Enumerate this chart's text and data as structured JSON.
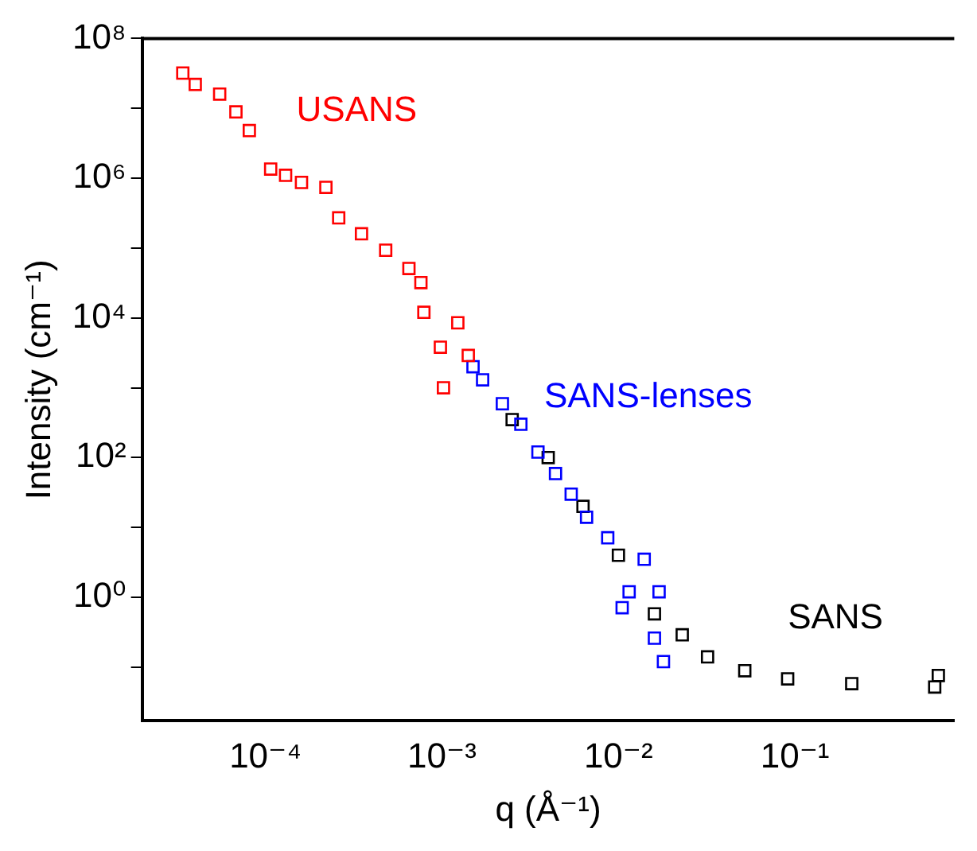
{
  "chart_data": {
    "type": "scatter",
    "xlabel": "q (Å⁻¹)",
    "ylabel": "Intensity (cm⁻¹)",
    "log": "xy",
    "marker": "square",
    "grid": false,
    "legend": false,
    "xlim": [
      2e-05,
      0.8
    ],
    "ylim": [
      0.017,
      100000000
    ],
    "xticks": [
      {
        "value": 0.0001,
        "label": "10⁻⁴"
      },
      {
        "value": 0.001,
        "label": "10⁻³"
      },
      {
        "value": 0.01,
        "label": "10⁻²"
      },
      {
        "value": 0.1,
        "label": "10⁻¹"
      }
    ],
    "yticks": [
      {
        "value": 0.1,
        "label": null
      },
      {
        "value": 1,
        "label": "10⁰"
      },
      {
        "value": 10,
        "label": null
      },
      {
        "value": 100,
        "label": "10²"
      },
      {
        "value": 1000,
        "label": null
      },
      {
        "value": 10000,
        "label": "10⁴"
      },
      {
        "value": 100000,
        "label": null
      },
      {
        "value": 1000000,
        "label": "10⁶"
      },
      {
        "value": 10000000,
        "label": null
      },
      {
        "value": 100000000,
        "label": "10⁸"
      }
    ],
    "series": [
      {
        "name": "USANS",
        "color": "#ff0000",
        "x": [
          3.4e-05,
          4e-05,
          5.5e-05,
          6.8e-05,
          8.1e-05,
          0.000107,
          0.00013,
          0.00016,
          0.00022,
          0.00026,
          0.00035,
          0.00048,
          0.00065,
          0.00076,
          0.00079,
          0.00098,
          0.00102,
          0.00123,
          0.00141
        ],
        "values": [
          32000000,
          22000000,
          16000000,
          8900000,
          4800000,
          1350000,
          1100000,
          870000,
          740000,
          270000,
          160000,
          93000,
          51000,
          32000,
          12000,
          3800,
          1000,
          8500,
          2900
        ]
      },
      {
        "name": "SANS-lenses",
        "color": "#0000ff",
        "x": [
          0.0015,
          0.0017,
          0.0022,
          0.0028,
          0.0035,
          0.0044,
          0.0054,
          0.0066,
          0.0087,
          0.0115,
          0.014,
          0.0105,
          0.017,
          0.016,
          0.018
        ],
        "values": [
          2000,
          1300,
          590,
          300,
          120,
          59,
          30,
          14,
          7.1,
          1.2,
          3.5,
          0.71,
          1.2,
          0.26,
          0.12
        ]
      },
      {
        "name": "SANS",
        "color": "#000000",
        "x": [
          0.0025,
          0.004,
          0.0063,
          0.01,
          0.016,
          0.023,
          0.032,
          0.052,
          0.091,
          0.21,
          0.62,
          0.65
        ],
        "values": [
          350,
          100,
          20,
          4,
          0.58,
          0.29,
          0.14,
          0.089,
          0.068,
          0.058,
          0.052,
          0.076
        ]
      }
    ]
  }
}
